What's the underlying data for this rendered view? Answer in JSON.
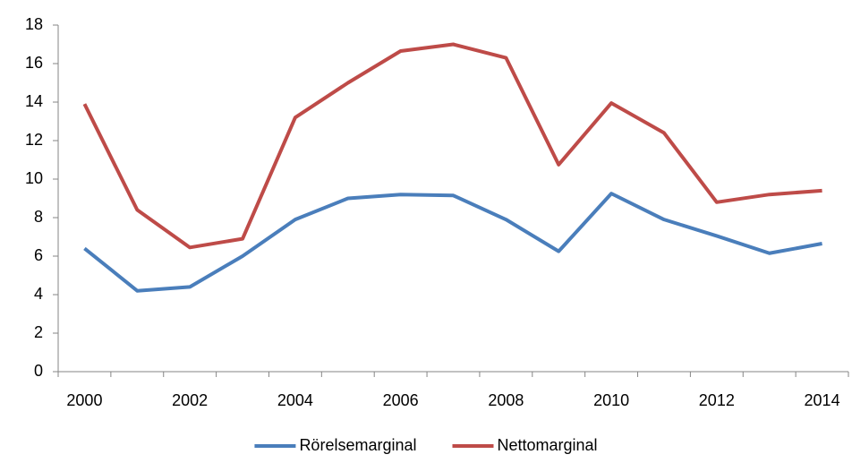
{
  "chart_data": {
    "type": "line",
    "categories": [
      "2000",
      null,
      "2002",
      null,
      "2004",
      null,
      "2006",
      null,
      "2008",
      null,
      "2010",
      null,
      "2012",
      null,
      "2014"
    ],
    "series": [
      {
        "name": "Rörelsemarginal",
        "color": "#4a7ebb",
        "values": [
          6.4,
          4.2,
          4.4,
          6.0,
          7.9,
          9.0,
          9.2,
          9.15,
          7.9,
          6.25,
          9.25,
          7.9,
          7.05,
          6.15,
          6.65
        ]
      },
      {
        "name": "Nettomarginal",
        "color": "#be4b48",
        "values": [
          13.9,
          8.4,
          6.45,
          6.9,
          13.2,
          15.0,
          16.65,
          17.0,
          16.3,
          10.75,
          13.95,
          12.4,
          8.8,
          9.2,
          9.4
        ]
      }
    ],
    "ylim": [
      0,
      18
    ],
    "yticks": [
      0,
      2,
      4,
      6,
      8,
      10,
      12,
      14,
      16,
      18
    ],
    "grid": false,
    "legend": "bottom"
  }
}
